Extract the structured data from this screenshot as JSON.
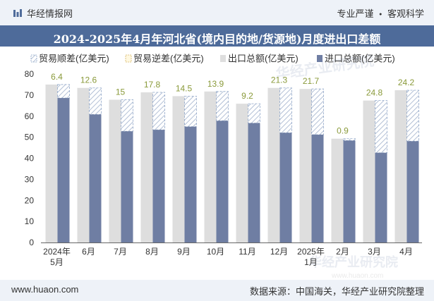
{
  "header": {
    "brand": "华经情报网",
    "tag_left": "专业严谨",
    "tag_sep": "●",
    "tag_right": "客观科学"
  },
  "footer": {
    "site": "www.huaon.com",
    "source": "数据来源：中国海关，华经产业研究院整理"
  },
  "watermark": "华经产业研究院",
  "watermark_url": "www.huaon.com",
  "colors": {
    "export": "#dedede",
    "import": "#6f7ea3",
    "surplus_stroke": "#8fa6c8",
    "hatch": "#9fb0cc",
    "label": "#8a9a3a"
  },
  "chart_data": {
    "type": "bar",
    "title": "2024-2025年4月年河北省(境内目的地/货源地)月度进出口差额",
    "categories": [
      [
        "2024年",
        "5月"
      ],
      [
        "6月"
      ],
      [
        "7月"
      ],
      [
        "8月"
      ],
      [
        "9月"
      ],
      [
        "10月"
      ],
      [
        "11月"
      ],
      [
        "12月"
      ],
      [
        "2025年",
        "1月"
      ],
      [
        "2月"
      ],
      [
        "3月"
      ],
      [
        "4月"
      ]
    ],
    "legend": [
      "贸易顺差(亿美元)",
      "贸易逆差(亿美元)",
      "出口总额(亿美元)",
      "进口总额(亿美元)"
    ],
    "series": [
      {
        "name": "出口总额(亿美元)",
        "values": [
          75.0,
          73.4,
          67.8,
          71.3,
          69.5,
          71.7,
          65.9,
          73.4,
          72.9,
          49.3,
          67.4,
          72.3
        ]
      },
      {
        "name": "进口总额(亿美元)",
        "values": [
          68.6,
          60.8,
          52.8,
          53.5,
          55.0,
          57.8,
          56.7,
          52.1,
          51.2,
          48.4,
          42.6,
          48.1
        ]
      }
    ],
    "balance": [
      6.4,
      12.6,
      15,
      17.8,
      14.5,
      13.9,
      9.2,
      21.3,
      21.7,
      0.9,
      24.8,
      24.2
    ],
    "balance_labels": [
      "6.4",
      "12.6",
      "15",
      "17.8",
      "14.5",
      "13.9",
      "9.2",
      "21.3",
      "21.7",
      "0.9",
      "24.8",
      "24.2"
    ],
    "yticks": [
      0,
      10,
      20,
      30,
      40,
      50,
      60,
      70,
      80
    ],
    "ylim": [
      0,
      80
    ]
  }
}
